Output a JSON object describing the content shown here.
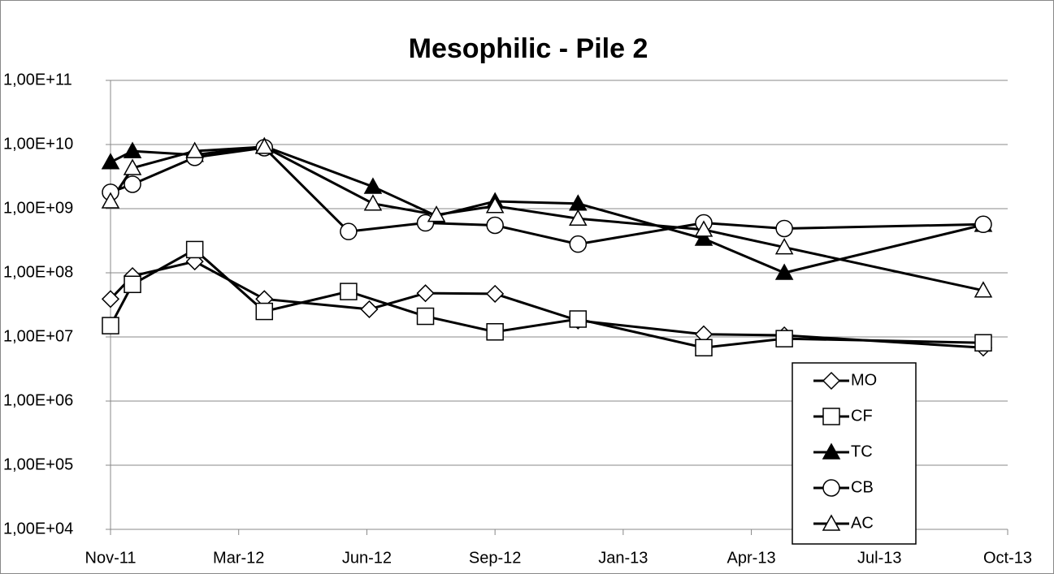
{
  "chart_data": {
    "type": "line",
    "title": "Mesophilic - Pile 2",
    "ylog": true,
    "ylim": [
      10000,
      100000000000
    ],
    "yticks": [
      {
        "value": 10000,
        "label": "1,00E+04"
      },
      {
        "value": 100000,
        "label": "1,00E+05"
      },
      {
        "value": 1000000,
        "label": "1,00E+06"
      },
      {
        "value": 10000000,
        "label": "1,00E+07"
      },
      {
        "value": 100000000,
        "label": "1,00E+08"
      },
      {
        "value": 1000000000,
        "label": "1,00E+09"
      },
      {
        "value": 10000000000,
        "label": "1,00E+10"
      },
      {
        "value": 100000000000,
        "label": "1,00E+11"
      }
    ],
    "xlim": [
      0,
      735
    ],
    "xticks": [
      {
        "value": 0,
        "label": "Nov-11"
      },
      {
        "value": 105,
        "label": "Mar-12"
      },
      {
        "value": 210,
        "label": "Jun-12"
      },
      {
        "value": 315,
        "label": "Sep-12"
      },
      {
        "value": 420,
        "label": "Jan-13"
      },
      {
        "value": 525,
        "label": "Apr-13"
      },
      {
        "value": 630,
        "label": "Jul-13"
      },
      {
        "value": 735,
        "label": "Oct-13"
      }
    ],
    "grid": true,
    "legend": "lower right",
    "series": [
      {
        "name": "MO",
        "color": "#000000",
        "marker": "diamond",
        "x": [
          0,
          18,
          69,
          126,
          212,
          258,
          315,
          383,
          486,
          552,
          715
        ],
        "values": [
          39000000,
          89000000,
          150000000,
          39000000,
          27000000,
          48000000,
          47000000,
          18000000,
          11000000,
          10600000,
          6800000
        ]
      },
      {
        "name": "CF",
        "color": "#000000",
        "marker": "square",
        "x": [
          0,
          18,
          69,
          126,
          195,
          258,
          315,
          383,
          486,
          552,
          715
        ],
        "values": [
          15000000,
          66000000,
          230000000,
          25000000,
          51000000,
          21000000,
          12000000,
          19000000,
          6800000,
          9400000,
          8100000
        ]
      },
      {
        "name": "TC",
        "color": "#000000",
        "marker": "triangle-filled",
        "x": [
          0,
          18,
          69,
          126,
          215,
          267,
          315,
          383,
          486,
          552,
          715
        ],
        "values": [
          5300000000,
          7900000000,
          6900000000,
          9400000000,
          2200000000,
          770000000,
          1300000000,
          1200000000,
          340000000,
          100000000,
          560000000
        ]
      },
      {
        "name": "CB",
        "color": "#000000",
        "marker": "circle",
        "x": [
          0,
          18,
          69,
          126,
          195,
          258,
          315,
          383,
          486,
          552,
          715
        ],
        "values": [
          1800000000,
          2400000000,
          6300000000,
          8900000000,
          440000000,
          600000000,
          550000000,
          280000000,
          600000000,
          490000000,
          570000000
        ]
      },
      {
        "name": "AC",
        "color": "#000000",
        "marker": "triangle",
        "x": [
          0,
          18,
          69,
          126,
          215,
          267,
          315,
          383,
          486,
          552,
          715
        ],
        "values": [
          1300000000,
          4300000000,
          7900000000,
          9200000000,
          1200000000,
          800000000,
          1100000000,
          700000000,
          470000000,
          250000000,
          53000000
        ]
      }
    ]
  }
}
